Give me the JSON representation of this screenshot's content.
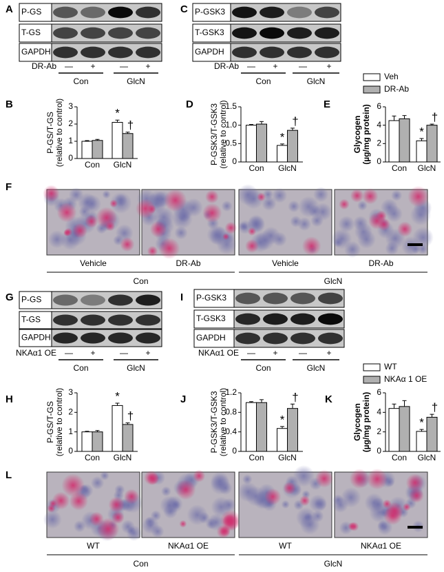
{
  "panel_labels": [
    "A",
    "C",
    "B",
    "D",
    "E",
    "F",
    "G",
    "I",
    "H",
    "J",
    "K",
    "L"
  ],
  "blots": [
    {
      "rows": [
        "P-GS",
        "T-GS",
        "GAPDH"
      ],
      "treatment": "DR-Ab",
      "signs": [
        "—",
        "+",
        "—",
        "+"
      ],
      "groups": [
        "Con",
        "GlcN"
      ]
    },
    {
      "rows": [
        "P-GSK3",
        "T-GSK3",
        "GAPDH"
      ],
      "treatment": "DR-Ab",
      "signs": [
        "—",
        "+",
        "—",
        "+"
      ],
      "groups": [
        "Con",
        "GlcN"
      ]
    },
    {
      "rows": [
        "P-GS",
        "T-GS",
        "GAPDH"
      ],
      "treatment": "NKAα1 OE",
      "signs": [
        "—",
        "+",
        "—",
        "+"
      ],
      "groups": [
        "Con",
        "GlcN"
      ]
    },
    {
      "rows": [
        "P-GSK3",
        "T-GSK3",
        "GAPDH"
      ],
      "treatment": "NKAα1 OE",
      "signs": [
        "—",
        "+",
        "—",
        "+"
      ],
      "groups": [
        "Con",
        "GlcN"
      ]
    }
  ],
  "micrographs": [
    {
      "labels": [
        "Vehicle",
        "DR-Ab",
        "Vehicle",
        "DR-Ab"
      ],
      "groups": [
        "Con",
        "GlcN"
      ]
    },
    {
      "labels": [
        "WT",
        "NKAα1 OE",
        "WT",
        "NKAα1 OE"
      ],
      "groups": [
        "Con",
        "GlcN"
      ]
    }
  ],
  "chart_data": [
    {
      "type": "bar",
      "ylabel": [
        "P-GS/T-GS",
        "(relative to control)"
      ],
      "categories": [
        "Con",
        "GlcN"
      ],
      "series": [
        {
          "color": "#ffffff",
          "values": [
            1.0,
            2.1
          ],
          "errors": [
            0.04,
            0.13
          ]
        },
        {
          "color": "#b0b0b0",
          "values": [
            1.05,
            1.45
          ],
          "errors": [
            0.06,
            0.08
          ]
        }
      ],
      "annotations": [
        "*",
        "†"
      ],
      "ylim": [
        0,
        3
      ],
      "yticks": [
        0,
        1,
        2,
        3
      ]
    },
    {
      "type": "bar",
      "ylabel": [
        "P-GSK3/T-GSK3",
        "(relative to control)"
      ],
      "categories": [
        "Con",
        "GlcN"
      ],
      "series": [
        {
          "color": "#ffffff",
          "values": [
            1.0,
            0.45
          ],
          "errors": [
            0.02,
            0.04
          ]
        },
        {
          "color": "#b0b0b0",
          "values": [
            1.03,
            0.86
          ],
          "errors": [
            0.07,
            0.06
          ]
        }
      ],
      "annotations": [
        "*",
        "†"
      ],
      "ylim": [
        0,
        1.5
      ],
      "yticks": [
        0,
        0.5,
        {
          "value": 1,
          "label": "1.0"
        },
        1.5
      ]
    },
    {
      "type": "bar",
      "ylabel": [
        "Glycogen",
        "(µg/mg protein)"
      ],
      "categories": [
        "Con",
        "GlcN"
      ],
      "series": [
        {
          "name": "Veh",
          "color": "#ffffff",
          "values": [
            4.5,
            2.3
          ],
          "errors": [
            0.5,
            0.25
          ]
        },
        {
          "name": "DR-Ab",
          "color": "#b0b0b0",
          "values": [
            4.7,
            4.0
          ],
          "errors": [
            0.35,
            0.12
          ]
        }
      ],
      "annotations": [
        "*",
        "†"
      ],
      "ylim": [
        0,
        6
      ],
      "yticks": [
        0,
        2,
        4,
        6
      ]
    },
    {
      "type": "bar",
      "ylabel": [
        "P-GS/T-GS",
        "(relative to control)"
      ],
      "categories": [
        "Con",
        "GlcN"
      ],
      "series": [
        {
          "color": "#ffffff",
          "values": [
            1.0,
            2.35
          ],
          "errors": [
            0.03,
            0.12
          ]
        },
        {
          "color": "#b0b0b0",
          "values": [
            1.0,
            1.38
          ],
          "errors": [
            0.07,
            0.08
          ]
        }
      ],
      "annotations": [
        "*",
        "†"
      ],
      "ylim": [
        0,
        3
      ],
      "yticks": [
        0,
        1,
        2,
        3
      ]
    },
    {
      "type": "bar",
      "ylabel": [
        "P-GSK3/T-GSK3",
        "(relative to control)"
      ],
      "categories": [
        "Con",
        "GlcN"
      ],
      "series": [
        {
          "color": "#ffffff",
          "values": [
            1.0,
            0.47
          ],
          "errors": [
            0.02,
            0.04
          ]
        },
        {
          "color": "#b0b0b0",
          "values": [
            1.0,
            0.88
          ],
          "errors": [
            0.06,
            0.09
          ]
        }
      ],
      "annotations": [
        "*",
        "†"
      ],
      "ylim": [
        0,
        1.2
      ],
      "yticks": [
        0,
        0.4,
        0.8,
        1.2
      ]
    },
    {
      "type": "bar",
      "ylabel": [
        "Glycogen",
        "(µg/mg protein)"
      ],
      "categories": [
        "Con",
        "GlcN"
      ],
      "series": [
        {
          "name": "WT",
          "color": "#ffffff",
          "values": [
            4.4,
            2.05
          ],
          "errors": [
            0.45,
            0.2
          ]
        },
        {
          "name": "NKAα 1 OE",
          "color": "#b0b0b0",
          "values": [
            4.6,
            3.5
          ],
          "errors": [
            0.6,
            0.3
          ]
        }
      ],
      "annotations": [
        "*",
        "†"
      ],
      "ylim": [
        0,
        6
      ],
      "yticks": [
        0,
        2,
        4,
        6
      ]
    }
  ]
}
